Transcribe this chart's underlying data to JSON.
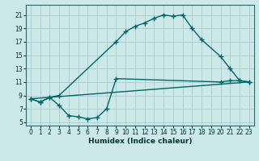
{
  "bg_color": "#cce8e8",
  "grid_color": "#aacccc",
  "line_color": "#006666",
  "xlabel": "Humidex (Indice chaleur)",
  "xlim": [
    -0.5,
    23.5
  ],
  "ylim": [
    4.5,
    22.5
  ],
  "xticks": [
    0,
    1,
    2,
    3,
    4,
    5,
    6,
    7,
    8,
    9,
    10,
    11,
    12,
    13,
    14,
    15,
    16,
    17,
    18,
    19,
    20,
    21,
    22,
    23
  ],
  "yticks": [
    5,
    7,
    9,
    11,
    13,
    15,
    17,
    19,
    21
  ],
  "curve1_x": [
    0,
    1,
    2,
    3,
    9,
    10,
    11,
    12,
    13,
    14,
    15,
    16,
    17,
    18,
    20,
    21,
    22,
    23
  ],
  "curve1_y": [
    8.5,
    8.0,
    8.7,
    9.0,
    17.0,
    18.5,
    19.3,
    19.8,
    20.5,
    21.0,
    20.8,
    21.0,
    19.0,
    17.3,
    14.8,
    13.0,
    11.2,
    11.0
  ],
  "curve2_x": [
    0,
    23
  ],
  "curve2_y": [
    8.5,
    11.0
  ],
  "curve3_x": [
    0,
    1,
    2,
    3,
    4,
    5,
    6,
    7,
    8,
    9,
    20,
    21,
    22,
    23
  ],
  "curve3_y": [
    8.5,
    8.0,
    8.7,
    7.5,
    6.0,
    5.8,
    5.5,
    5.7,
    7.0,
    11.5,
    11.0,
    11.2,
    11.2,
    11.0
  ],
  "marker": "+",
  "markersize": 4,
  "linewidth": 1.0,
  "tick_fontsize": 5.5,
  "xlabel_fontsize": 6.5
}
